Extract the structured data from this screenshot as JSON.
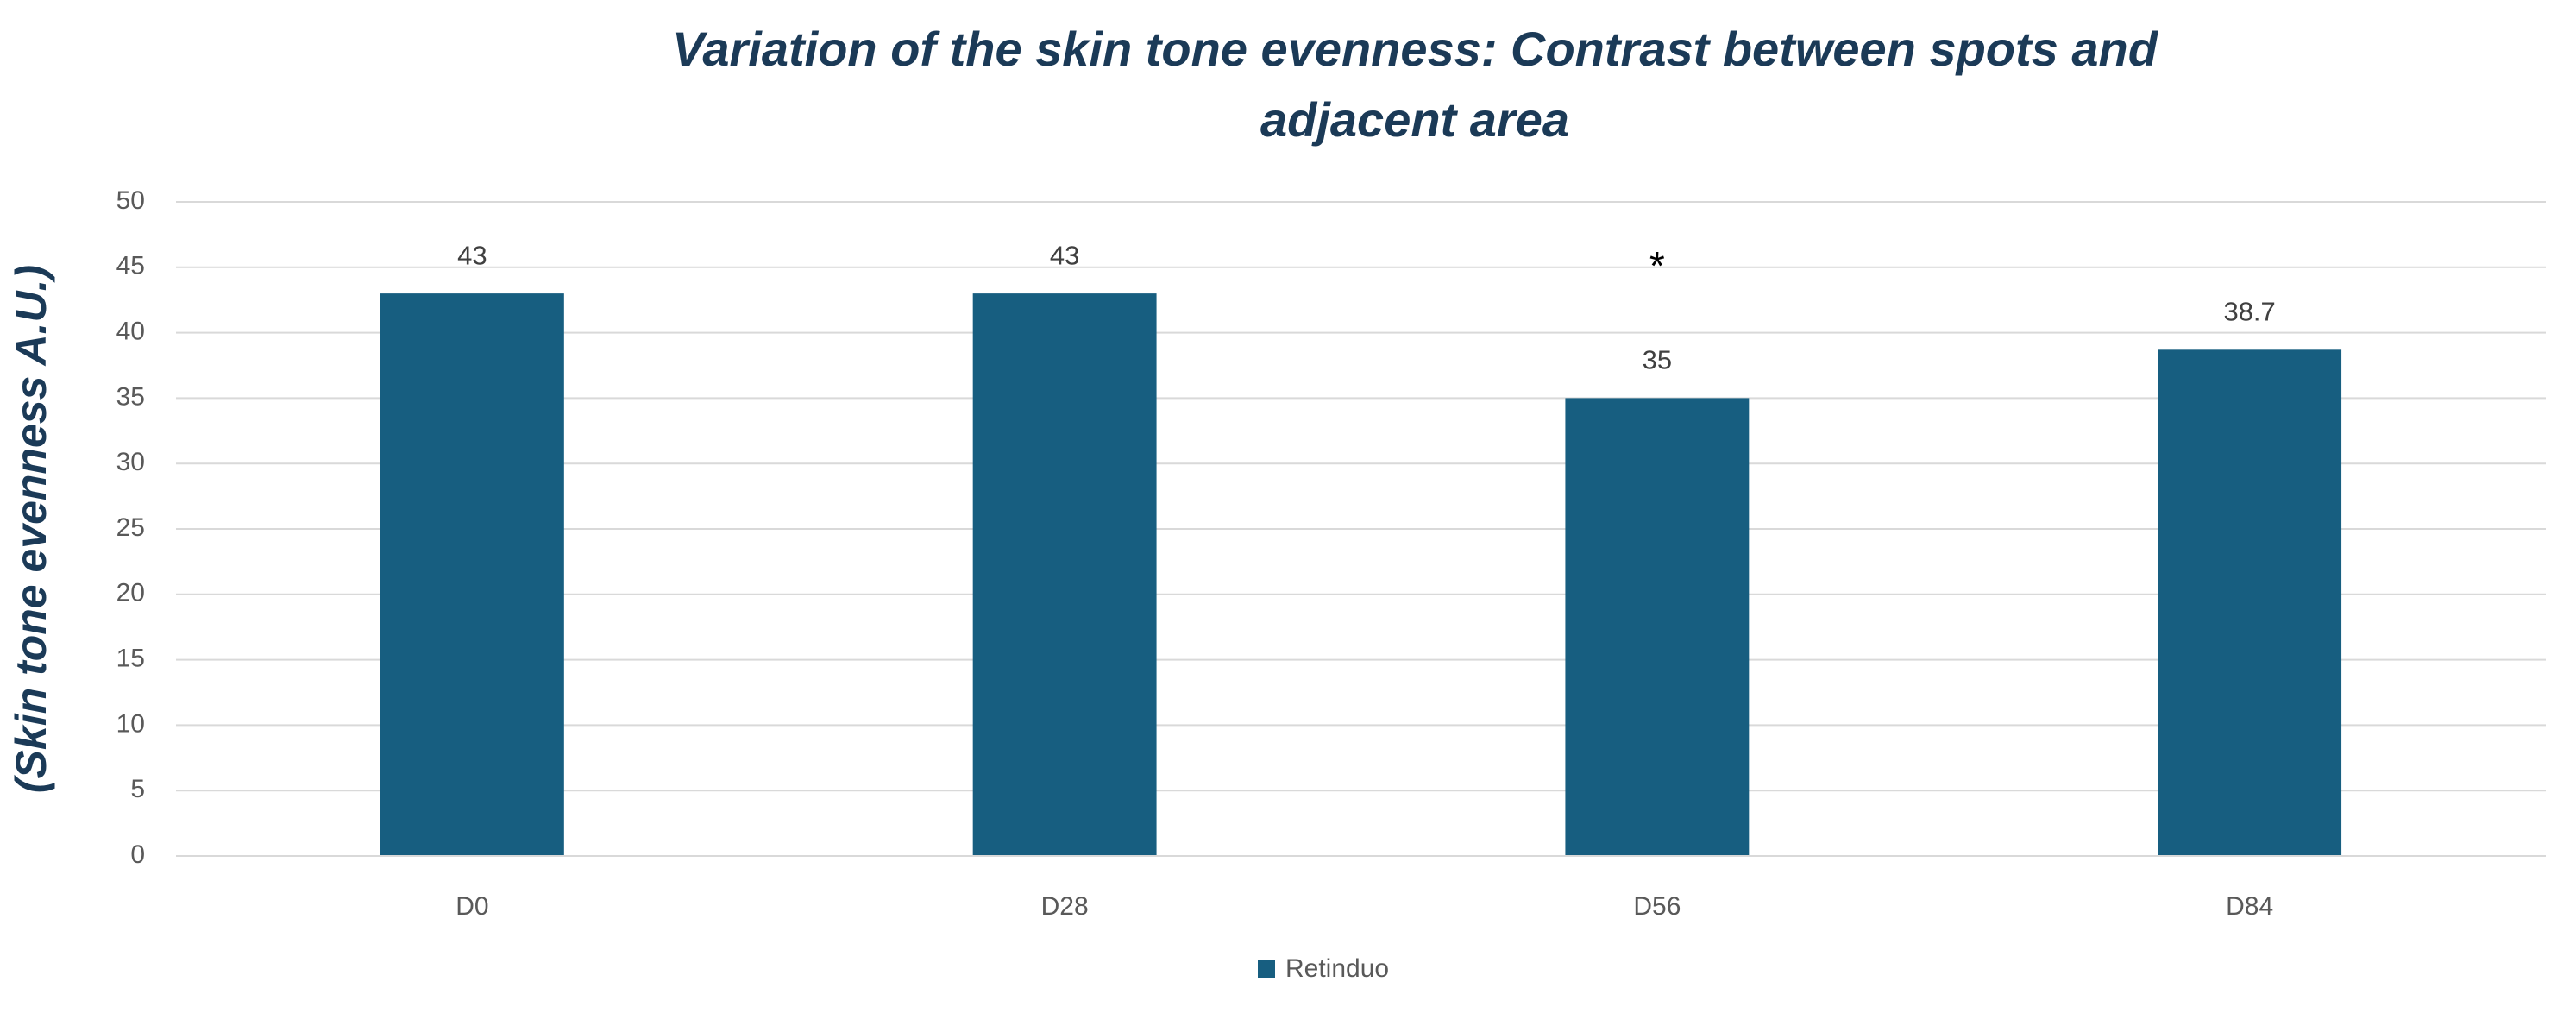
{
  "chart_data": {
    "type": "bar",
    "title": "Variation of the skin tone evenness: Contrast between spots and adjacent area",
    "y_label": "(Skin tone evenness A.U.)",
    "categories": [
      "D0",
      "D28",
      "D56",
      "D84"
    ],
    "series": [
      {
        "name": "Retinduo",
        "color": "#175e80",
        "values": [
          43,
          43,
          35,
          38.7
        ]
      }
    ],
    "annotation": "*",
    "ylim": [
      0,
      50
    ],
    "yticks": [
      0,
      5,
      10,
      15,
      20,
      25,
      30,
      35,
      40,
      45,
      50
    ],
    "grid": true,
    "legend": "bottom"
  }
}
